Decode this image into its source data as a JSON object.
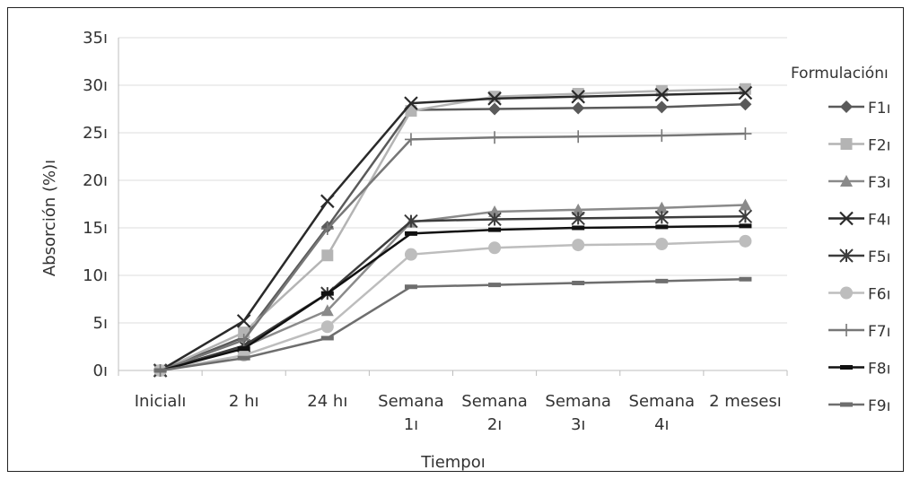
{
  "chart_data": {
    "type": "line",
    "title": "",
    "xlabel": "Tiempoı",
    "ylabel": "Absorción (%)ı",
    "ylim": [
      0,
      35
    ],
    "yticks": [
      "0ı",
      "5ı",
      "10ı",
      "15ı",
      "20ı",
      "25ı",
      "30ı",
      "35ı"
    ],
    "grid": true,
    "legend_title": "Formulaciónı",
    "legend_position": "right",
    "categories": [
      [
        "Inicialı"
      ],
      [
        "2 hı"
      ],
      [
        "24 hı"
      ],
      [
        "Semana",
        "1ı"
      ],
      [
        "Semana",
        "2ı"
      ],
      [
        "Semana",
        "3ı"
      ],
      [
        "Semana",
        "4ı"
      ],
      [
        "2 mesesı"
      ]
    ],
    "series": [
      {
        "name": "F1ı",
        "color": "#5a5a5a",
        "marker": "diamond",
        "values": [
          0,
          3.5,
          15.1,
          27.4,
          27.5,
          27.6,
          27.7,
          28.0
        ]
      },
      {
        "name": "F2ı",
        "color": "#b4b4b4",
        "marker": "square",
        "values": [
          0,
          4.0,
          12.1,
          27.3,
          28.8,
          29.1,
          29.4,
          29.6
        ]
      },
      {
        "name": "F3ı",
        "color": "#8a8a8a",
        "marker": "triangle",
        "values": [
          0,
          2.5,
          6.3,
          15.6,
          16.7,
          16.9,
          17.1,
          17.4
        ]
      },
      {
        "name": "F4ı",
        "color": "#2a2a2a",
        "marker": "x",
        "values": [
          0,
          5.2,
          17.8,
          28.1,
          28.6,
          28.8,
          29.0,
          29.2
        ]
      },
      {
        "name": "F5ı",
        "color": "#3c3c3c",
        "marker": "star",
        "values": [
          0,
          2.6,
          8.1,
          15.7,
          15.9,
          16.0,
          16.1,
          16.2
        ]
      },
      {
        "name": "F6ı",
        "color": "#bdbdbd",
        "marker": "circle",
        "values": [
          0,
          1.6,
          4.6,
          12.2,
          12.9,
          13.2,
          13.3,
          13.6
        ]
      },
      {
        "name": "F7ı",
        "color": "#777777",
        "marker": "plus",
        "values": [
          0,
          3.2,
          14.9,
          24.3,
          24.5,
          24.6,
          24.7,
          24.9
        ]
      },
      {
        "name": "F8ı",
        "color": "#111111",
        "marker": "dash",
        "values": [
          0,
          2.3,
          8.1,
          14.4,
          14.8,
          15.0,
          15.1,
          15.2
        ]
      },
      {
        "name": "F9ı",
        "color": "#6e6e6e",
        "marker": "dash",
        "values": [
          0,
          1.3,
          3.4,
          8.8,
          9.0,
          9.2,
          9.4,
          9.6
        ]
      }
    ]
  }
}
